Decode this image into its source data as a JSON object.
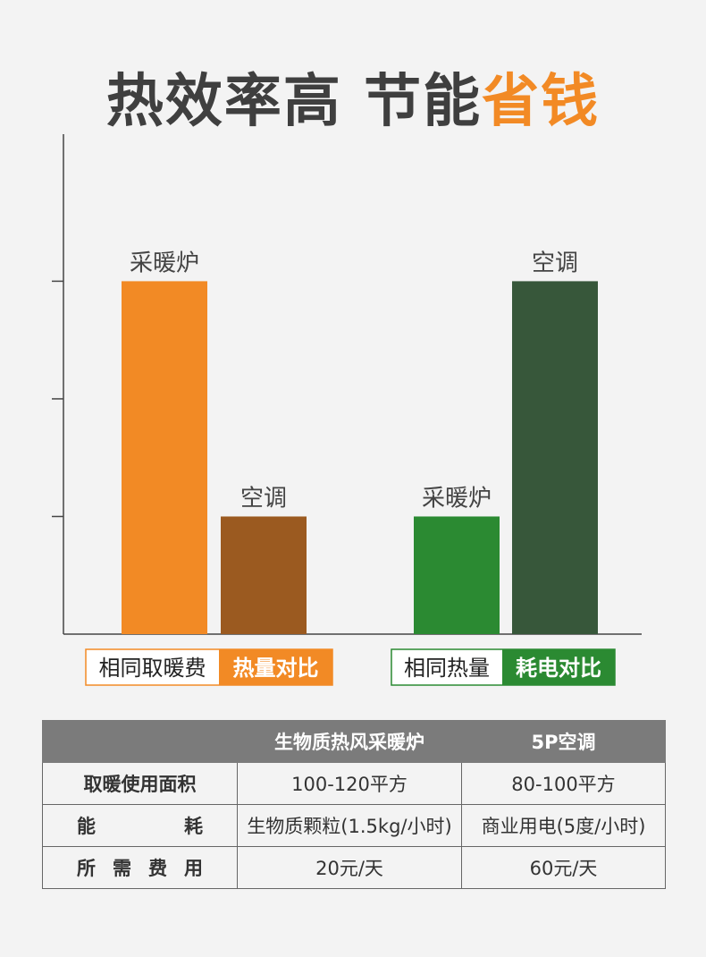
{
  "title_parts": [
    "热效率高 节能",
    "省钱"
  ],
  "chart_data": {
    "type": "bar",
    "groups": [
      {
        "name_parts": [
          "相同取暖费",
          "热量对比"
        ],
        "categories": [
          "采暖炉",
          "空调"
        ],
        "values": [
          3,
          1
        ],
        "colors": [
          "#f28a25",
          "#9b5a20"
        ],
        "accent": "#f28a25"
      },
      {
        "name_parts": [
          "相同热量",
          "耗电对比"
        ],
        "categories": [
          "采暖炉",
          "空调"
        ],
        "values": [
          1,
          3
        ],
        "colors": [
          "#2b8a32",
          "#37573a"
        ],
        "accent": "#2b8a32"
      }
    ],
    "ylim": [
      0,
      4.25
    ],
    "yticks": [
      1,
      2,
      3
    ]
  },
  "table": {
    "header": [
      "生物质热风采暖炉",
      "5P空调"
    ],
    "rows": [
      [
        "取暖使用面积",
        "100-120平方",
        "80-100平方"
      ],
      [
        "能耗",
        "生物质颗粒(1.5kg/小时)",
        "商业用电(5度/小时)"
      ],
      [
        "所需费用",
        "20元/天",
        "60元/天"
      ]
    ]
  }
}
